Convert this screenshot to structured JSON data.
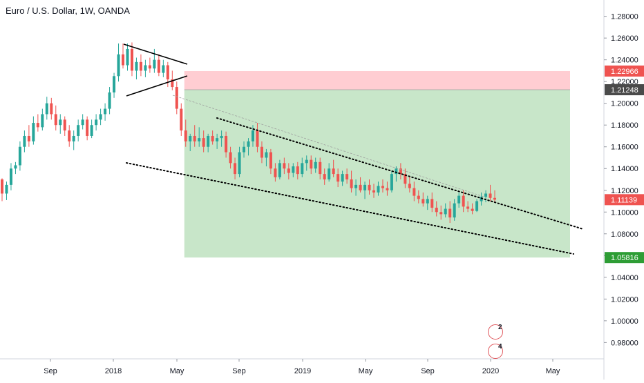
{
  "title": "Euro / U.S. Dollar, 1W, OANDA",
  "colors": {
    "up": "#26a69a",
    "down": "#ef5350",
    "stop_zone": "#ffcdd2",
    "target_zone": "#c8e6c9",
    "axis_text": "#131722",
    "stop_tag": "#ef5350",
    "entry_tag": "#4a4a4a",
    "last_tag": "#ef5350",
    "target_tag": "#2e9d35"
  },
  "chart_data": {
    "type": "candlestick",
    "symbol": "EURUSD",
    "timeframe": "1W",
    "ylim": [
      0.965,
      1.295
    ],
    "y_ticks": [
      "1.28000",
      "1.26000",
      "1.24000",
      "1.22000",
      "1.20000",
      "1.18000",
      "1.16000",
      "1.14000",
      "1.12000",
      "1.10000",
      "1.08000",
      "1.06000",
      "1.04000",
      "1.02000",
      "1.00000",
      "0.98000"
    ],
    "x_ticks": [
      "Sep",
      "2018",
      "May",
      "Sep",
      "2019",
      "May",
      "Sep",
      "2020",
      "May"
    ],
    "price_tags": {
      "stop": "1.22966",
      "entry": "1.21248",
      "last": "1.11139",
      "target": "1.05816"
    },
    "position": {
      "type": "short",
      "entry": 1.21248,
      "stop": 1.22966,
      "target": 1.05816
    },
    "candles": [
      [
        1.13,
        1.131,
        1.11,
        1.117
      ],
      [
        1.117,
        1.128,
        1.111,
        1.125
      ],
      [
        1.125,
        1.145,
        1.12,
        1.14
      ],
      [
        1.14,
        1.146,
        1.135,
        1.143
      ],
      [
        1.143,
        1.165,
        1.138,
        1.16
      ],
      [
        1.16,
        1.175,
        1.155,
        1.17
      ],
      [
        1.17,
        1.18,
        1.16,
        1.165
      ],
      [
        1.165,
        1.188,
        1.162,
        1.182
      ],
      [
        1.182,
        1.19,
        1.174,
        1.178
      ],
      [
        1.178,
        1.195,
        1.175,
        1.19
      ],
      [
        1.19,
        1.206,
        1.185,
        1.2
      ],
      [
        1.2,
        1.205,
        1.185,
        1.19
      ],
      [
        1.19,
        1.198,
        1.175,
        1.18
      ],
      [
        1.18,
        1.19,
        1.172,
        1.185
      ],
      [
        1.185,
        1.188,
        1.17,
        1.175
      ],
      [
        1.175,
        1.18,
        1.16,
        1.165
      ],
      [
        1.165,
        1.175,
        1.157,
        1.17
      ],
      [
        1.17,
        1.185,
        1.165,
        1.18
      ],
      [
        1.18,
        1.19,
        1.176,
        1.185
      ],
      [
        1.185,
        1.188,
        1.166,
        1.17
      ],
      [
        1.17,
        1.185,
        1.168,
        1.18
      ],
      [
        1.18,
        1.19,
        1.175,
        1.185
      ],
      [
        1.185,
        1.195,
        1.18,
        1.19
      ],
      [
        1.19,
        1.2,
        1.184,
        1.195
      ],
      [
        1.195,
        1.215,
        1.19,
        1.21
      ],
      [
        1.21,
        1.228,
        1.205,
        1.225
      ],
      [
        1.225,
        1.255,
        1.22,
        1.245
      ],
      [
        1.245,
        1.255,
        1.232,
        1.235
      ],
      [
        1.235,
        1.255,
        1.23,
        1.25
      ],
      [
        1.25,
        1.256,
        1.225,
        1.23
      ],
      [
        1.23,
        1.242,
        1.222,
        1.238
      ],
      [
        1.238,
        1.245,
        1.225,
        1.23
      ],
      [
        1.23,
        1.24,
        1.224,
        1.235
      ],
      [
        1.235,
        1.242,
        1.228,
        1.232
      ],
      [
        1.232,
        1.25,
        1.228,
        1.24
      ],
      [
        1.24,
        1.245,
        1.225,
        1.228
      ],
      [
        1.228,
        1.24,
        1.224,
        1.235
      ],
      [
        1.235,
        1.238,
        1.215,
        1.222
      ],
      [
        1.222,
        1.23,
        1.212,
        1.215
      ],
      [
        1.215,
        1.22,
        1.19,
        1.195
      ],
      [
        1.195,
        1.2,
        1.17,
        1.175
      ],
      [
        1.175,
        1.185,
        1.16,
        1.165
      ],
      [
        1.165,
        1.172,
        1.156,
        1.17
      ],
      [
        1.17,
        1.18,
        1.16,
        1.165
      ],
      [
        1.165,
        1.178,
        1.16,
        1.168
      ],
      [
        1.168,
        1.175,
        1.155,
        1.16
      ],
      [
        1.16,
        1.172,
        1.155,
        1.17
      ],
      [
        1.17,
        1.175,
        1.162,
        1.165
      ],
      [
        1.165,
        1.172,
        1.158,
        1.168
      ],
      [
        1.168,
        1.175,
        1.16,
        1.17
      ],
      [
        1.17,
        1.174,
        1.15,
        1.155
      ],
      [
        1.155,
        1.16,
        1.14,
        1.145
      ],
      [
        1.145,
        1.15,
        1.13,
        1.135
      ],
      [
        1.135,
        1.16,
        1.132,
        1.155
      ],
      [
        1.155,
        1.165,
        1.15,
        1.16
      ],
      [
        1.16,
        1.168,
        1.152,
        1.165
      ],
      [
        1.165,
        1.18,
        1.16,
        1.175
      ],
      [
        1.175,
        1.182,
        1.155,
        1.16
      ],
      [
        1.16,
        1.165,
        1.145,
        1.15
      ],
      [
        1.15,
        1.158,
        1.142,
        1.155
      ],
      [
        1.155,
        1.158,
        1.135,
        1.14
      ],
      [
        1.14,
        1.145,
        1.128,
        1.132
      ],
      [
        1.132,
        1.148,
        1.13,
        1.145
      ],
      [
        1.145,
        1.15,
        1.135,
        1.14
      ],
      [
        1.14,
        1.145,
        1.13,
        1.136
      ],
      [
        1.136,
        1.145,
        1.132,
        1.142
      ],
      [
        1.142,
        1.146,
        1.13,
        1.135
      ],
      [
        1.135,
        1.15,
        1.132,
        1.145
      ],
      [
        1.145,
        1.152,
        1.138,
        1.148
      ],
      [
        1.148,
        1.152,
        1.135,
        1.14
      ],
      [
        1.14,
        1.15,
        1.136,
        1.146
      ],
      [
        1.146,
        1.15,
        1.13,
        1.135
      ],
      [
        1.135,
        1.14,
        1.125,
        1.13
      ],
      [
        1.13,
        1.145,
        1.128,
        1.14
      ],
      [
        1.14,
        1.148,
        1.132,
        1.135
      ],
      [
        1.135,
        1.14,
        1.123,
        1.128
      ],
      [
        1.128,
        1.138,
        1.124,
        1.135
      ],
      [
        1.135,
        1.14,
        1.126,
        1.13
      ],
      [
        1.13,
        1.138,
        1.118,
        1.122
      ],
      [
        1.122,
        1.13,
        1.115,
        1.125
      ],
      [
        1.125,
        1.132,
        1.118,
        1.12
      ],
      [
        1.12,
        1.128,
        1.112,
        1.125
      ],
      [
        1.125,
        1.13,
        1.116,
        1.12
      ],
      [
        1.12,
        1.126,
        1.113,
        1.118
      ],
      [
        1.118,
        1.128,
        1.115,
        1.124
      ],
      [
        1.124,
        1.13,
        1.118,
        1.122
      ],
      [
        1.122,
        1.128,
        1.115,
        1.12
      ],
      [
        1.12,
        1.138,
        1.118,
        1.135
      ],
      [
        1.135,
        1.142,
        1.128,
        1.14
      ],
      [
        1.14,
        1.145,
        1.13,
        1.135
      ],
      [
        1.135,
        1.14,
        1.122,
        1.126
      ],
      [
        1.126,
        1.132,
        1.118,
        1.122
      ],
      [
        1.122,
        1.128,
        1.11,
        1.115
      ],
      [
        1.115,
        1.12,
        1.108,
        1.112
      ],
      [
        1.112,
        1.118,
        1.105,
        1.108
      ],
      [
        1.108,
        1.115,
        1.102,
        1.112
      ],
      [
        1.112,
        1.118,
        1.1,
        1.104
      ],
      [
        1.104,
        1.11,
        1.096,
        1.1
      ],
      [
        1.1,
        1.106,
        1.093,
        1.098
      ],
      [
        1.098,
        1.108,
        1.095,
        1.103
      ],
      [
        1.103,
        1.11,
        1.09,
        1.095
      ],
      [
        1.095,
        1.112,
        1.092,
        1.108
      ],
      [
        1.108,
        1.118,
        1.104,
        1.115
      ],
      [
        1.115,
        1.12,
        1.1,
        1.105
      ],
      [
        1.105,
        1.11,
        1.1,
        1.103
      ],
      [
        1.103,
        1.108,
        1.098,
        1.101
      ],
      [
        1.101,
        1.112,
        1.1,
        1.11
      ],
      [
        1.11,
        1.118,
        1.106,
        1.114
      ],
      [
        1.114,
        1.12,
        1.109,
        1.117
      ],
      [
        1.117,
        1.125,
        1.11,
        1.113
      ],
      [
        1.113,
        1.12,
        1.109,
        1.11139
      ]
    ],
    "annotations": {
      "badge_1_count": "2",
      "badge_2_count": "4"
    }
  }
}
